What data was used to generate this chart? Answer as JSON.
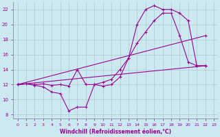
{
  "background_color": "#cce8f0",
  "grid_color": "#aacccc",
  "line_color": "#990099",
  "xlabel": "Windchill (Refroidissement éolien,°C)",
  "xlim": [
    -0.5,
    23.5
  ],
  "ylim": [
    7.5,
    23.0
  ],
  "yticks": [
    8,
    10,
    12,
    14,
    16,
    18,
    20,
    22
  ],
  "xticks": [
    0,
    1,
    2,
    3,
    4,
    5,
    6,
    7,
    8,
    9,
    10,
    11,
    12,
    13,
    14,
    15,
    16,
    17,
    18,
    19,
    20,
    21,
    22,
    23
  ],
  "curve1_x": [
    0,
    1,
    2,
    3,
    4,
    5,
    6,
    7,
    8,
    9,
    10,
    11,
    12,
    13,
    14,
    15,
    16,
    17,
    18,
    19,
    20,
    21,
    22
  ],
  "curve1_y": [
    12.0,
    12.1,
    11.9,
    11.7,
    11.0,
    10.8,
    8.5,
    9.0,
    9.0,
    12.0,
    11.8,
    12.0,
    13.0,
    15.5,
    17.5,
    19.0,
    20.5,
    21.5,
    21.5,
    18.5,
    15.0,
    14.5,
    14.5
  ],
  "curve2_x": [
    0,
    1,
    2,
    3,
    4,
    5,
    6,
    7,
    8,
    9,
    10,
    11,
    12,
    13,
    14,
    15,
    16,
    17,
    18,
    19,
    20,
    21,
    22
  ],
  "curve2_y": [
    12.0,
    12.1,
    12.0,
    12.1,
    11.9,
    12.0,
    11.8,
    14.0,
    12.0,
    12.0,
    12.3,
    12.7,
    14.0,
    15.5,
    20.0,
    22.0,
    22.5,
    22.0,
    22.0,
    21.5,
    20.5,
    14.5,
    14.5
  ],
  "curve3_x": [
    0,
    22
  ],
  "curve3_y": [
    12.0,
    14.5
  ],
  "curve4_x": [
    0,
    22
  ],
  "curve4_y": [
    12.0,
    18.5
  ]
}
